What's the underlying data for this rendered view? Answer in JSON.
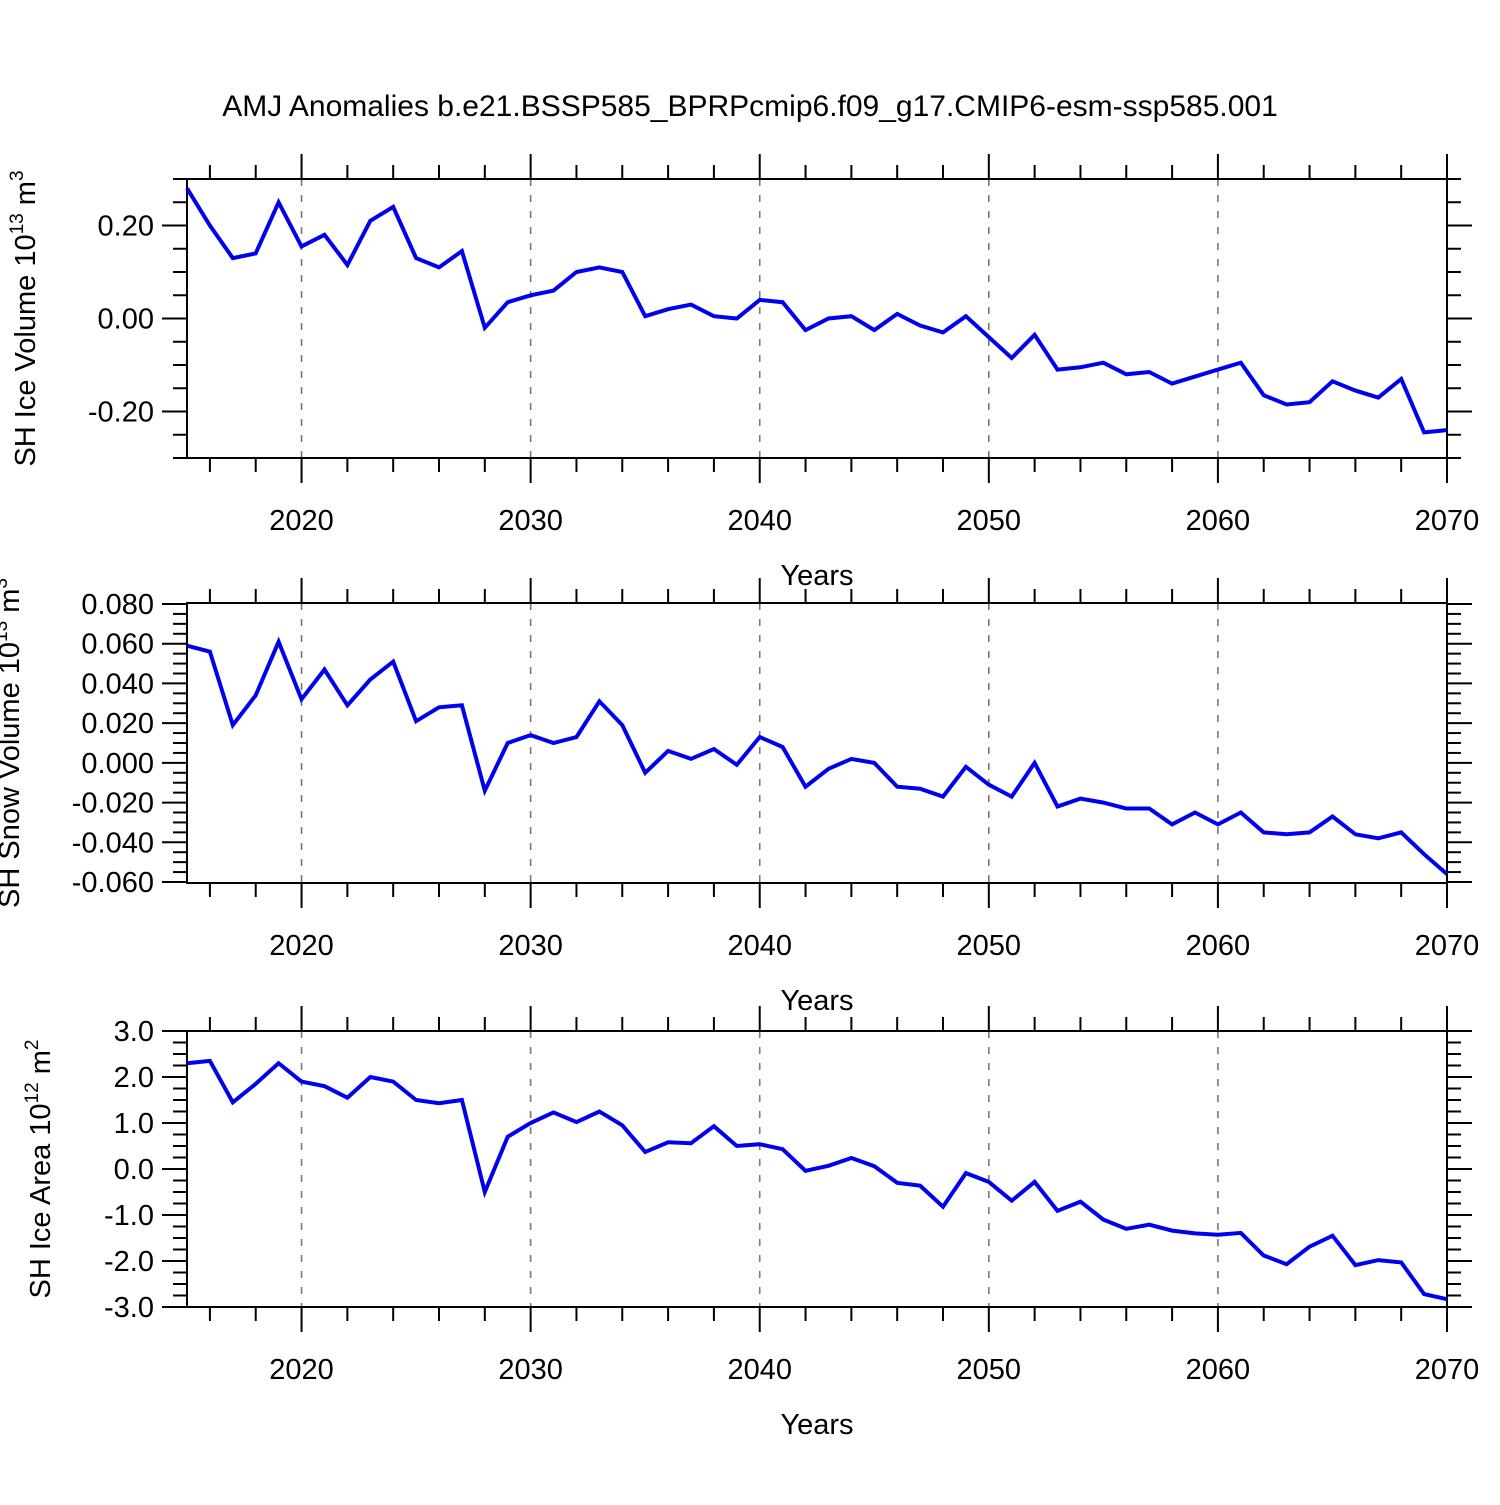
{
  "title": "AMJ Anomalies b.e21.BSSP585_BPRPcmip6.f09_g17.CMIP6-esm-ssp585.001",
  "colors": {
    "line": "#0000EE",
    "grid": "#777777",
    "axis": "#000000"
  },
  "years": {
    "start": 2015,
    "end": 2070,
    "step": 1
  },
  "xticks": [
    2020,
    2030,
    2040,
    2050,
    2060,
    2070
  ],
  "x_minor_step": 2,
  "grid_x": [
    2020,
    2030,
    2040,
    2050,
    2060
  ],
  "xlabel": "Years",
  "chart_data": [
    {
      "type": "line",
      "ylabel": "SH Ice Volume 10^13 m^3",
      "ylabel_parts": [
        [
          "SH Ice Volume 10",
          0
        ],
        [
          "13",
          1
        ],
        [
          " m",
          0
        ],
        [
          "3",
          1
        ]
      ],
      "xlabel": "Years",
      "ylim": [
        -0.3,
        0.3
      ],
      "yticks": [
        0.2,
        0.0,
        -0.2
      ],
      "yminor_step": 0.05,
      "ydecimals": 2,
      "values": [
        0.28,
        0.2,
        0.13,
        0.14,
        0.25,
        0.155,
        0.18,
        0.115,
        0.21,
        0.24,
        0.13,
        0.11,
        0.145,
        -0.02,
        0.035,
        0.05,
        0.06,
        0.1,
        0.11,
        0.1,
        0.005,
        0.02,
        0.03,
        0.005,
        0.0,
        0.04,
        0.035,
        -0.025,
        0.0,
        0.005,
        -0.025,
        0.01,
        -0.015,
        -0.03,
        0.005,
        -0.04,
        -0.085,
        -0.035,
        -0.11,
        -0.105,
        -0.095,
        -0.12,
        -0.115,
        -0.14,
        -0.125,
        -0.11,
        -0.095,
        -0.165,
        -0.185,
        -0.18,
        -0.135,
        -0.155,
        -0.17,
        -0.13,
        -0.245,
        -0.24
      ]
    },
    {
      "type": "line",
      "ylabel": "SH Snow Volume 10^13 m^3",
      "ylabel_parts": [
        [
          "SH Snow Volume 10",
          0
        ],
        [
          "13",
          1
        ],
        [
          " m",
          0
        ],
        [
          "3",
          1
        ]
      ],
      "xlabel": "Years",
      "ylim": [
        -0.0605,
        0.0805
      ],
      "yticks": [
        0.08,
        0.06,
        0.04,
        0.02,
        0.0,
        -0.02,
        -0.04,
        -0.06
      ],
      "yminor_step": 0.005,
      "ydecimals": 3,
      "values": [
        0.059,
        0.056,
        0.019,
        0.034,
        0.061,
        0.032,
        0.047,
        0.029,
        0.042,
        0.051,
        0.021,
        0.028,
        0.029,
        -0.014,
        0.01,
        0.014,
        0.01,
        0.013,
        0.031,
        0.019,
        -0.005,
        0.006,
        0.002,
        0.007,
        -0.001,
        0.013,
        0.008,
        -0.012,
        -0.003,
        0.002,
        0.0,
        -0.012,
        -0.013,
        -0.017,
        -0.002,
        -0.011,
        -0.017,
        0.0,
        -0.022,
        -0.018,
        -0.02,
        -0.023,
        -0.023,
        -0.031,
        -0.025,
        -0.031,
        -0.025,
        -0.035,
        -0.036,
        -0.035,
        -0.027,
        -0.036,
        -0.038,
        -0.035,
        -0.046,
        -0.056
      ]
    },
    {
      "type": "line",
      "ylabel": "SH Ice Area 10^12 m^2",
      "ylabel_parts": [
        [
          "SH Ice Area 10",
          0
        ],
        [
          "12",
          1
        ],
        [
          " m",
          0
        ],
        [
          "2",
          1
        ]
      ],
      "xlabel": "Years",
      "ylim": [
        -3.0,
        3.0
      ],
      "yticks": [
        3.0,
        2.0,
        1.0,
        0.0,
        -1.0,
        -2.0,
        -3.0
      ],
      "yminor_step": 0.25,
      "ydecimals": 1,
      "values": [
        2.3,
        2.35,
        1.45,
        1.85,
        2.3,
        1.9,
        1.8,
        1.55,
        2.0,
        1.9,
        1.5,
        1.43,
        1.5,
        -0.5,
        0.7,
        1.0,
        1.23,
        1.02,
        1.25,
        0.95,
        0.37,
        0.58,
        0.56,
        0.93,
        0.5,
        0.54,
        0.43,
        -0.04,
        0.07,
        0.24,
        0.06,
        -0.3,
        -0.36,
        -0.82,
        -0.09,
        -0.28,
        -0.69,
        -0.28,
        -0.91,
        -0.71,
        -1.1,
        -1.3,
        -1.21,
        -1.34,
        -1.4,
        -1.43,
        -1.39,
        -1.88,
        -2.07,
        -1.69,
        -1.45,
        -2.09,
        -1.98,
        -2.03,
        -2.72,
        -2.83
      ]
    }
  ]
}
